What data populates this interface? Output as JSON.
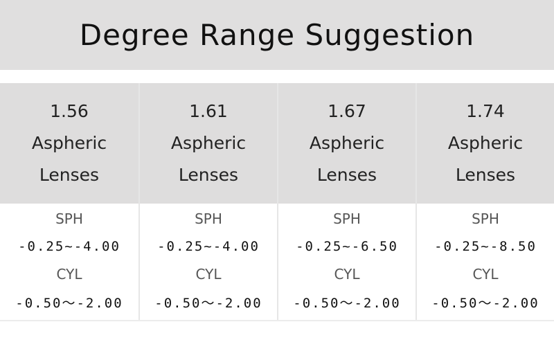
{
  "header": {
    "title": "Degree Range Suggestion"
  },
  "table": {
    "columns": [
      {
        "name": "1.56 Aspheric Lenses",
        "rows": [
          "SPH",
          "-0.25~-4.00",
          "CYL",
          "-0.50～-2.00"
        ]
      },
      {
        "name": "1.61 Aspheric Lenses",
        "rows": [
          "SPH",
          "-0.25~-4.00",
          "CYL",
          "-0.50～-2.00"
        ]
      },
      {
        "name": "1.67 Aspheric Lenses",
        "rows": [
          "SPH",
          "-0.25~-6.50",
          "CYL",
          "-0.50～-2.00"
        ]
      },
      {
        "name": "1.74 Aspheric Lenses",
        "rows": [
          "SPH",
          "-0.25~-8.50",
          "CYL",
          "-0.50～-2.00"
        ]
      }
    ]
  }
}
